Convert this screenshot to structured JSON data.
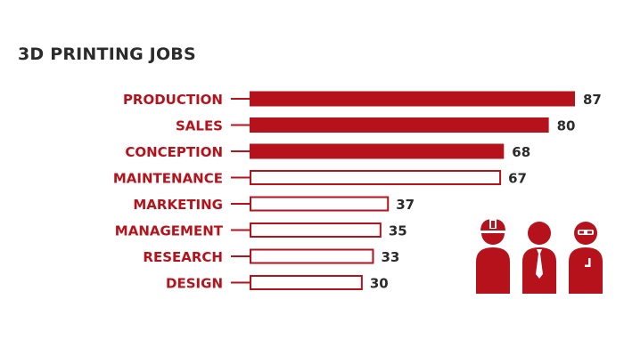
{
  "chart_data": {
    "type": "bar",
    "orientation": "horizontal",
    "title": "3D PRINTING JOBS",
    "categories": [
      "PRODUCTION",
      "SALES",
      "CONCEPTION",
      "MAINTENANCE",
      "MARKETING",
      "MANAGEMENT",
      "RESEARCH",
      "DESIGN"
    ],
    "values": [
      87,
      80,
      68,
      67,
      37,
      35,
      33,
      30
    ],
    "filled": [
      true,
      true,
      true,
      false,
      false,
      false,
      false,
      false
    ],
    "xlabel": "",
    "ylabel": "",
    "xlim": [
      0,
      87
    ],
    "grid": false,
    "legend": "none",
    "colors": {
      "accent": "#b5121b",
      "label": "#b5121b",
      "value": "#2b2b2b",
      "empty_fill": "#ffffff"
    }
  },
  "illustration": {
    "icons": [
      "construction-worker-icon",
      "businessman-icon",
      "engineer-icon"
    ]
  }
}
